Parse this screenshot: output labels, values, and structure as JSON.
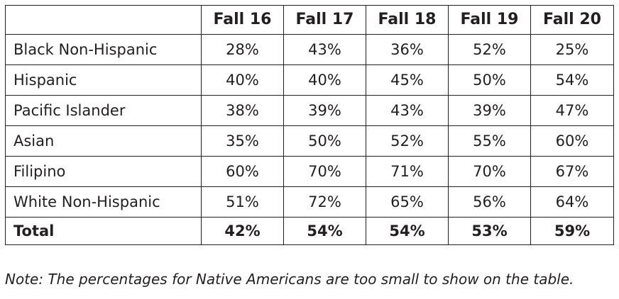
{
  "chart_data": {
    "type": "table",
    "columns": [
      "",
      "Fall 16",
      "Fall 17",
      "Fall 18",
      "Fall 19",
      "Fall 20"
    ],
    "rows": [
      {
        "label": "Black Non-Hispanic",
        "values": [
          "28%",
          "43%",
          "36%",
          "52%",
          "25%"
        ]
      },
      {
        "label": "Hispanic",
        "values": [
          "40%",
          "40%",
          "45%",
          "50%",
          "54%"
        ]
      },
      {
        "label": "Pacific Islander",
        "values": [
          "38%",
          "39%",
          "43%",
          "39%",
          "47%"
        ]
      },
      {
        "label": "Asian",
        "values": [
          "35%",
          "50%",
          "52%",
          "55%",
          "60%"
        ]
      },
      {
        "label": "Filipino",
        "values": [
          "60%",
          "70%",
          "71%",
          "70%",
          "67%"
        ]
      },
      {
        "label": "White Non-Hispanic",
        "values": [
          "51%",
          "72%",
          "65%",
          "56%",
          "64%"
        ]
      }
    ],
    "total": {
      "label": "Total",
      "values": [
        "42%",
        "54%",
        "54%",
        "53%",
        "59%"
      ]
    }
  },
  "note": "Note: The percentages for Native Americans are too small to show on the table."
}
